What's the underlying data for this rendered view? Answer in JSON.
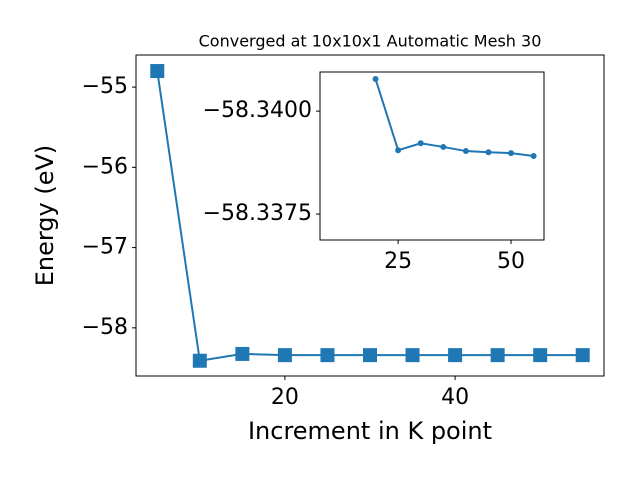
{
  "chart_data": [
    {
      "type": "line",
      "title": "Converged at 10x10x1 Automatic Mesh 30",
      "x_label": "Increment in K point",
      "y_label": "Energy (eV)",
      "x": [
        5,
        10,
        15,
        20,
        25,
        30,
        35,
        40,
        45,
        50,
        55
      ],
      "series": [
        {
          "color": "#1f77b4",
          "marker": "square",
          "values": [
            -54.8,
            -58.41,
            -58.325,
            -58.34,
            -58.34,
            -58.34,
            -58.34,
            -58.34,
            -58.34,
            -58.34,
            -58.34
          ]
        }
      ],
      "xlim": [
        2.5,
        57.5
      ],
      "xticks": [
        20,
        40
      ],
      "ylim": [
        -58.6,
        -54.6
      ],
      "yticks": [
        {
          "value": -58,
          "label": "−58"
        },
        {
          "value": -57,
          "label": "−57"
        },
        {
          "value": -56,
          "label": "−56"
        },
        {
          "value": -55,
          "label": "−55"
        }
      ]
    },
    {
      "type": "line",
      "x": [
        20,
        25,
        30,
        35,
        40,
        45,
        50,
        55
      ],
      "series": [
        {
          "color": "#1f77b4",
          "marker": "circle",
          "values": [
            -58.34078,
            -58.33905,
            -58.33922,
            -58.33913,
            -58.33903,
            -58.339,
            -58.33898,
            -58.33891
          ]
        }
      ],
      "xlim": [
        7.7,
        57.3
      ],
      "xticks": [
        25,
        50
      ],
      "ylim": [
        -58.33687,
        -58.34095
      ],
      "yticks": [
        {
          "value": -58.3375,
          "label": "−58.3375"
        },
        {
          "value": -58.34,
          "label": "−58.3400"
        }
      ]
    }
  ]
}
